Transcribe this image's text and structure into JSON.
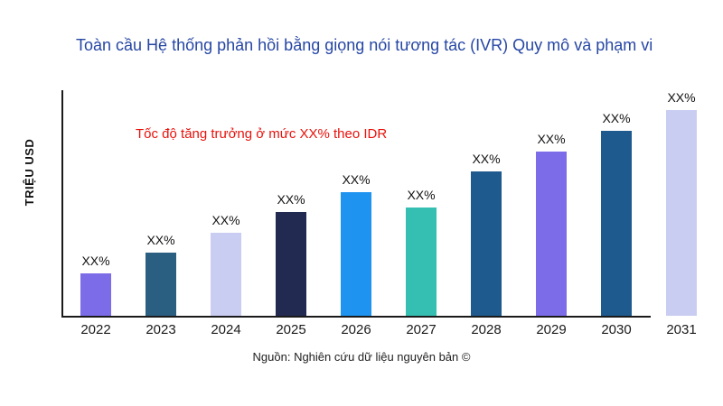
{
  "chart_data": {
    "type": "bar",
    "title": "Toàn cầu Hệ thống phản hồi bằng giọng nói tương tác (IVR) Quy mô và phạm vi",
    "title_color": "#2646a4",
    "ylabel": "TRIỆU USD",
    "xlabel": "",
    "categories": [
      "2022",
      "2023",
      "2024",
      "2025",
      "2026",
      "2027",
      "2028",
      "2029",
      "2030",
      "2031"
    ],
    "values": [
      19,
      28,
      37,
      46,
      55,
      48,
      64,
      73,
      82,
      92
    ],
    "bar_labels": [
      "XX%",
      "XX%",
      "XX%",
      "XX%",
      "XX%",
      "XX%",
      "XX%",
      "XX%",
      "XX%",
      "XX%"
    ],
    "bar_colors": [
      "#7c6ce8",
      "#2b5f82",
      "#c9cdf2",
      "#232a52",
      "#1e93ef",
      "#35bfb2",
      "#1e5a8e",
      "#7c6ce8",
      "#1e5a8e",
      "#c9cdf2"
    ],
    "ylim": [
      0,
      100
    ],
    "grid": false,
    "legend": "none",
    "annotation": "Tốc độ tăng trưởng ở mức XX% theo IDR",
    "annotation_color": "#e8120c",
    "source": "Nguồn: Nghiên cứu dữ liệu nguyên bản ©"
  }
}
